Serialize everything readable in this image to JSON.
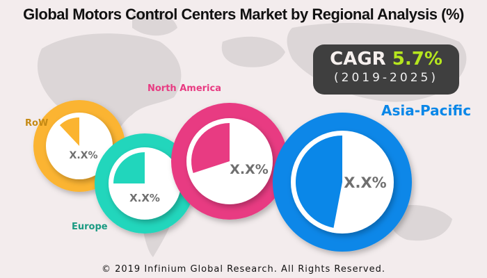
{
  "title": "Global Motors Control Centers Market by Regional Analysis (%)",
  "cagr": {
    "label": "CAGR",
    "value": "5.7%",
    "period": "(2019-2025)",
    "value_color": "#b6e61e"
  },
  "footer": "© 2019 Infinium Global Research. All Rights Reserved.",
  "chart_data": {
    "type": "pie",
    "title": "Global Motors Control Centers Market by Regional Analysis (%)",
    "series": [
      {
        "name": "RoW",
        "value_label": "X.X%",
        "share": 0.12,
        "color": "#fbb430",
        "label_color": "#c58a15"
      },
      {
        "name": "Europe",
        "value_label": "X.X%",
        "share": 0.25,
        "color": "#21d6bc",
        "label_color": "#1a9a82"
      },
      {
        "name": "North America",
        "value_label": "X.X%",
        "share": 0.3,
        "color": "#e83b82",
        "label_color": "#e83b82"
      },
      {
        "name": "Asia-Pacific",
        "value_label": "X.X%",
        "share": 0.47,
        "color": "#0a87e8",
        "label_color": "#0a87e8"
      }
    ],
    "annotations": [
      "CAGR 5.7%",
      "(2019-2025)"
    ],
    "note": "Values are masked as X.X%; slice shares estimated from drawn wedge sizes"
  }
}
